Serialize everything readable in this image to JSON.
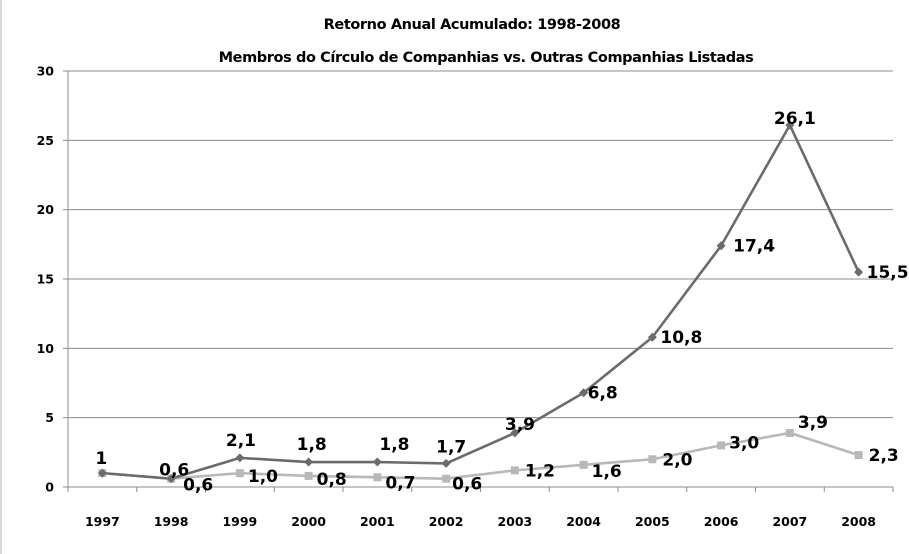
{
  "chart_data": {
    "type": "line",
    "title": "Retorno Anual Acumulado: 1998-2008",
    "subtitle": "Membros do Círculo de Companhias vs. Outras Companhias Listadas",
    "xlabel": "",
    "ylabel": "",
    "categories": [
      "1997",
      "1998",
      "1999",
      "2000",
      "2001",
      "2002",
      "2003",
      "2004",
      "2005",
      "2006",
      "2007",
      "2008"
    ],
    "ylim": [
      0,
      30
    ],
    "yticks": [
      "0",
      "5",
      "10",
      "15",
      "20",
      "25",
      "30"
    ],
    "grid": true,
    "legend": "none",
    "series": [
      {
        "values": [
          1,
          0.6,
          2.1,
          1.8,
          1.8,
          1.7,
          3.9,
          6.8,
          10.8,
          17.4,
          26.1,
          15.5
        ],
        "labels": [
          "1",
          "0,6",
          "2,1",
          "1,8",
          "1,8",
          "1,7",
          "3,9",
          "6,8",
          "10,8",
          "17,4",
          "26,1",
          "15,5"
        ],
        "color": "#6b6b6b",
        "marker": "diamond"
      },
      {
        "values": [
          1,
          0.6,
          1.0,
          0.8,
          0.7,
          0.6,
          1.2,
          1.6,
          2.0,
          3.0,
          3.9,
          2.3
        ],
        "labels": [
          "",
          "0,6",
          "1,0",
          "0,8",
          "0,7",
          "0,6",
          "1,2",
          "1,6",
          "2,0",
          "3,0",
          "3,9",
          "2,3"
        ],
        "color": "#b8b8b8",
        "marker": "square"
      }
    ]
  }
}
